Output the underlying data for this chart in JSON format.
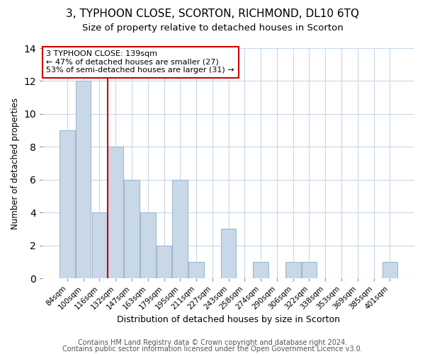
{
  "title": "3, TYPHOON CLOSE, SCORTON, RICHMOND, DL10 6TQ",
  "subtitle": "Size of property relative to detached houses in Scorton",
  "xlabel": "Distribution of detached houses by size in Scorton",
  "ylabel": "Number of detached properties",
  "categories": [
    "84sqm",
    "100sqm",
    "116sqm",
    "132sqm",
    "147sqm",
    "163sqm",
    "179sqm",
    "195sqm",
    "211sqm",
    "227sqm",
    "243sqm",
    "258sqm",
    "274sqm",
    "290sqm",
    "306sqm",
    "322sqm",
    "338sqm",
    "353sqm",
    "369sqm",
    "385sqm",
    "401sqm"
  ],
  "values": [
    9,
    12,
    4,
    8,
    6,
    4,
    2,
    6,
    1,
    0,
    3,
    0,
    1,
    0,
    1,
    1,
    0,
    0,
    0,
    0,
    1
  ],
  "bar_color": "#c8d8e8",
  "bar_edgecolor": "#a0b8cc",
  "vline_x": 2.5,
  "vline_color": "#cc0000",
  "annotation_text": "3 TYPHOON CLOSE: 139sqm\n← 47% of detached houses are smaller (27)\n53% of semi-detached houses are larger (31) →",
  "annotation_box_edgecolor": "#cc0000",
  "annotation_box_facecolor": "#ffffff",
  "ylim": [
    0,
    14
  ],
  "footer1": "Contains HM Land Registry data © Crown copyright and database right 2024.",
  "footer2": "Contains public sector information licensed under the Open Government Licence v3.0.",
  "title_fontsize": 11,
  "subtitle_fontsize": 9.5,
  "xlabel_fontsize": 9,
  "ylabel_fontsize": 8.5,
  "tick_fontsize": 7.5,
  "footer_fontsize": 7,
  "grid_color": "#c8d8e8"
}
